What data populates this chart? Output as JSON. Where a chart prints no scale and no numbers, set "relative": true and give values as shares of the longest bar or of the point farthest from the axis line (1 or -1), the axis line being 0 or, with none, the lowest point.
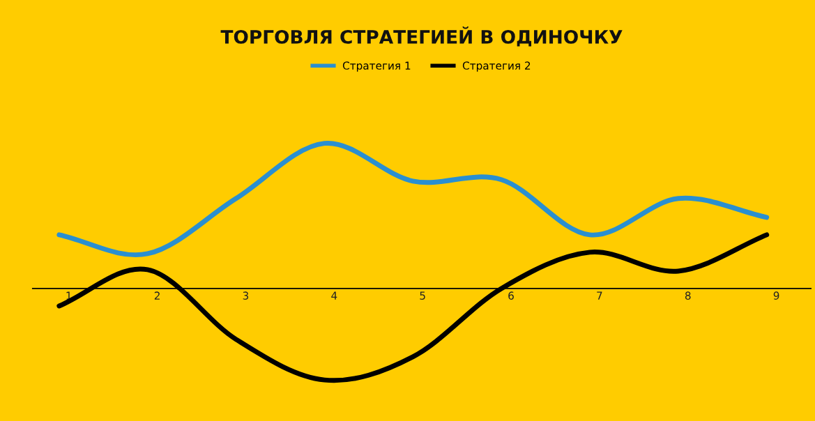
{
  "chart_data": {
    "type": "line",
    "title": "ТОРГОВЛЯ СТРАТЕГИЕЙ В ОДИНОЧКУ",
    "relative": true,
    "categories": [
      "1",
      "2",
      "3",
      "4",
      "5",
      "6",
      "7",
      "8",
      "9"
    ],
    "series": [
      {
        "name": "Стратегия 1",
        "color": "#2a8fd0",
        "values": [
          0.37,
          0.24,
          0.62,
          1.0,
          0.74,
          0.75,
          0.37,
          0.62,
          0.49
        ]
      },
      {
        "name": "Стратегия 2",
        "color": "#000000",
        "values": [
          -0.12,
          0.13,
          -0.35,
          -0.63,
          -0.47,
          0.0,
          0.25,
          0.12,
          0.37
        ]
      }
    ],
    "legend": "top",
    "marker": "none",
    "line_style": "solid"
  }
}
